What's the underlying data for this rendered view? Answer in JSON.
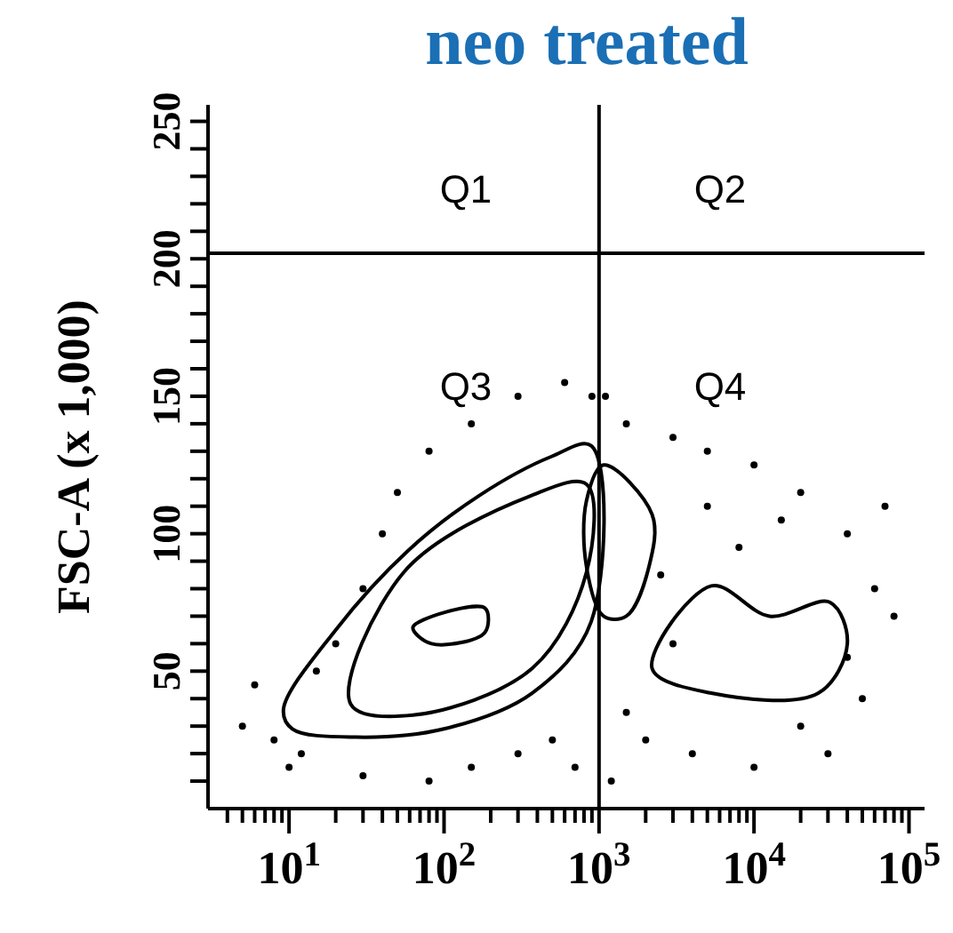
{
  "chart_data": {
    "type": "scatter",
    "title": "neo treated",
    "ylabel": "FSC-A (x 1,000)",
    "log": "x",
    "xlim": [
      3,
      126000
    ],
    "ylim": [
      0,
      256
    ],
    "xticks": [
      {
        "value": 4,
        "label": null
      },
      {
        "value": 5,
        "label": null
      },
      {
        "value": 6,
        "label": null
      },
      {
        "value": 7,
        "label": null
      },
      {
        "value": 8,
        "label": null
      },
      {
        "value": 9,
        "label": null
      },
      {
        "value": 10,
        "label": "10$^{1}$"
      },
      {
        "value": 20,
        "label": null
      },
      {
        "value": 30,
        "label": null
      },
      {
        "value": 40,
        "label": null
      },
      {
        "value": 50,
        "label": null
      },
      {
        "value": 60,
        "label": null
      },
      {
        "value": 70,
        "label": null
      },
      {
        "value": 80,
        "label": null
      },
      {
        "value": 90,
        "label": null
      },
      {
        "value": 100,
        "label": "10$^{2}$"
      },
      {
        "value": 200,
        "label": null
      },
      {
        "value": 300,
        "label": null
      },
      {
        "value": 400,
        "label": null
      },
      {
        "value": 500,
        "label": null
      },
      {
        "value": 600,
        "label": null
      },
      {
        "value": 700,
        "label": null
      },
      {
        "value": 800,
        "label": null
      },
      {
        "value": 900,
        "label": null
      },
      {
        "value": 1000,
        "label": "10$^{3}$"
      },
      {
        "value": 2000,
        "label": null
      },
      {
        "value": 3000,
        "label": null
      },
      {
        "value": 4000,
        "label": null
      },
      {
        "value": 5000,
        "label": null
      },
      {
        "value": 6000,
        "label": null
      },
      {
        "value": 7000,
        "label": null
      },
      {
        "value": 8000,
        "label": null
      },
      {
        "value": 9000,
        "label": null
      },
      {
        "value": 10000,
        "label": "10$^{4}$"
      },
      {
        "value": 20000,
        "label": null
      },
      {
        "value": 30000,
        "label": null
      },
      {
        "value": 40000,
        "label": null
      },
      {
        "value": 50000,
        "label": null
      },
      {
        "value": 60000,
        "label": null
      },
      {
        "value": 70000,
        "label": null
      },
      {
        "value": 80000,
        "label": null
      },
      {
        "value": 90000,
        "label": null
      },
      {
        "value": 100000,
        "label": "10$^{5}$"
      }
    ],
    "yticks": [
      {
        "value": 10,
        "label": null
      },
      {
        "value": 20,
        "label": null
      },
      {
        "value": 30,
        "label": null
      },
      {
        "value": 40,
        "label": null
      },
      50,
      {
        "value": 60,
        "label": null
      },
      {
        "value": 70,
        "label": null
      },
      {
        "value": 80,
        "label": null
      },
      {
        "value": 90,
        "label": null
      },
      100,
      {
        "value": 110,
        "label": null
      },
      {
        "value": 120,
        "label": null
      },
      {
        "value": 130,
        "label": null
      },
      {
        "value": 140,
        "label": null
      },
      150,
      {
        "value": 160,
        "label": null
      },
      {
        "value": 170,
        "label": null
      },
      {
        "value": 180,
        "label": null
      },
      {
        "value": 190,
        "label": null
      },
      200,
      {
        "value": 210,
        "label": null
      },
      {
        "value": 220,
        "label": null
      },
      {
        "value": 230,
        "label": null
      },
      {
        "value": 240,
        "label": null
      },
      250
    ],
    "marker": "circle",
    "ref_lines": [
      {
        "axis": "x",
        "value": 1000,
        "color": "#000000"
      },
      {
        "axis": "y",
        "value": 202,
        "color": "#000000"
      }
    ],
    "annotations": [
      "Q1",
      "Q2",
      "Q3",
      "Q4"
    ],
    "series": [
      {
        "color": "#000000",
        "x": [
          6,
          5,
          8,
          12,
          15,
          20,
          30,
          40,
          50,
          80,
          150,
          300,
          600,
          900,
          10,
          30,
          80,
          150,
          300,
          500,
          700,
          1500,
          3000,
          5000,
          10000,
          20000,
          40000,
          60000,
          80000,
          50000,
          30000,
          10000,
          4000,
          2000,
          1500,
          3000,
          8000,
          15000,
          5000,
          2500,
          40000,
          70000,
          1200,
          20000,
          1100
        ],
        "values": [
          45,
          30,
          25,
          20,
          50,
          60,
          80,
          100,
          115,
          130,
          140,
          150,
          155,
          150,
          15,
          12,
          10,
          15,
          20,
          25,
          15,
          140,
          135,
          130,
          125,
          115,
          100,
          80,
          70,
          40,
          20,
          15,
          20,
          25,
          35,
          60,
          95,
          105,
          110,
          85,
          55,
          110,
          10,
          30,
          150
        ]
      }
    ]
  }
}
